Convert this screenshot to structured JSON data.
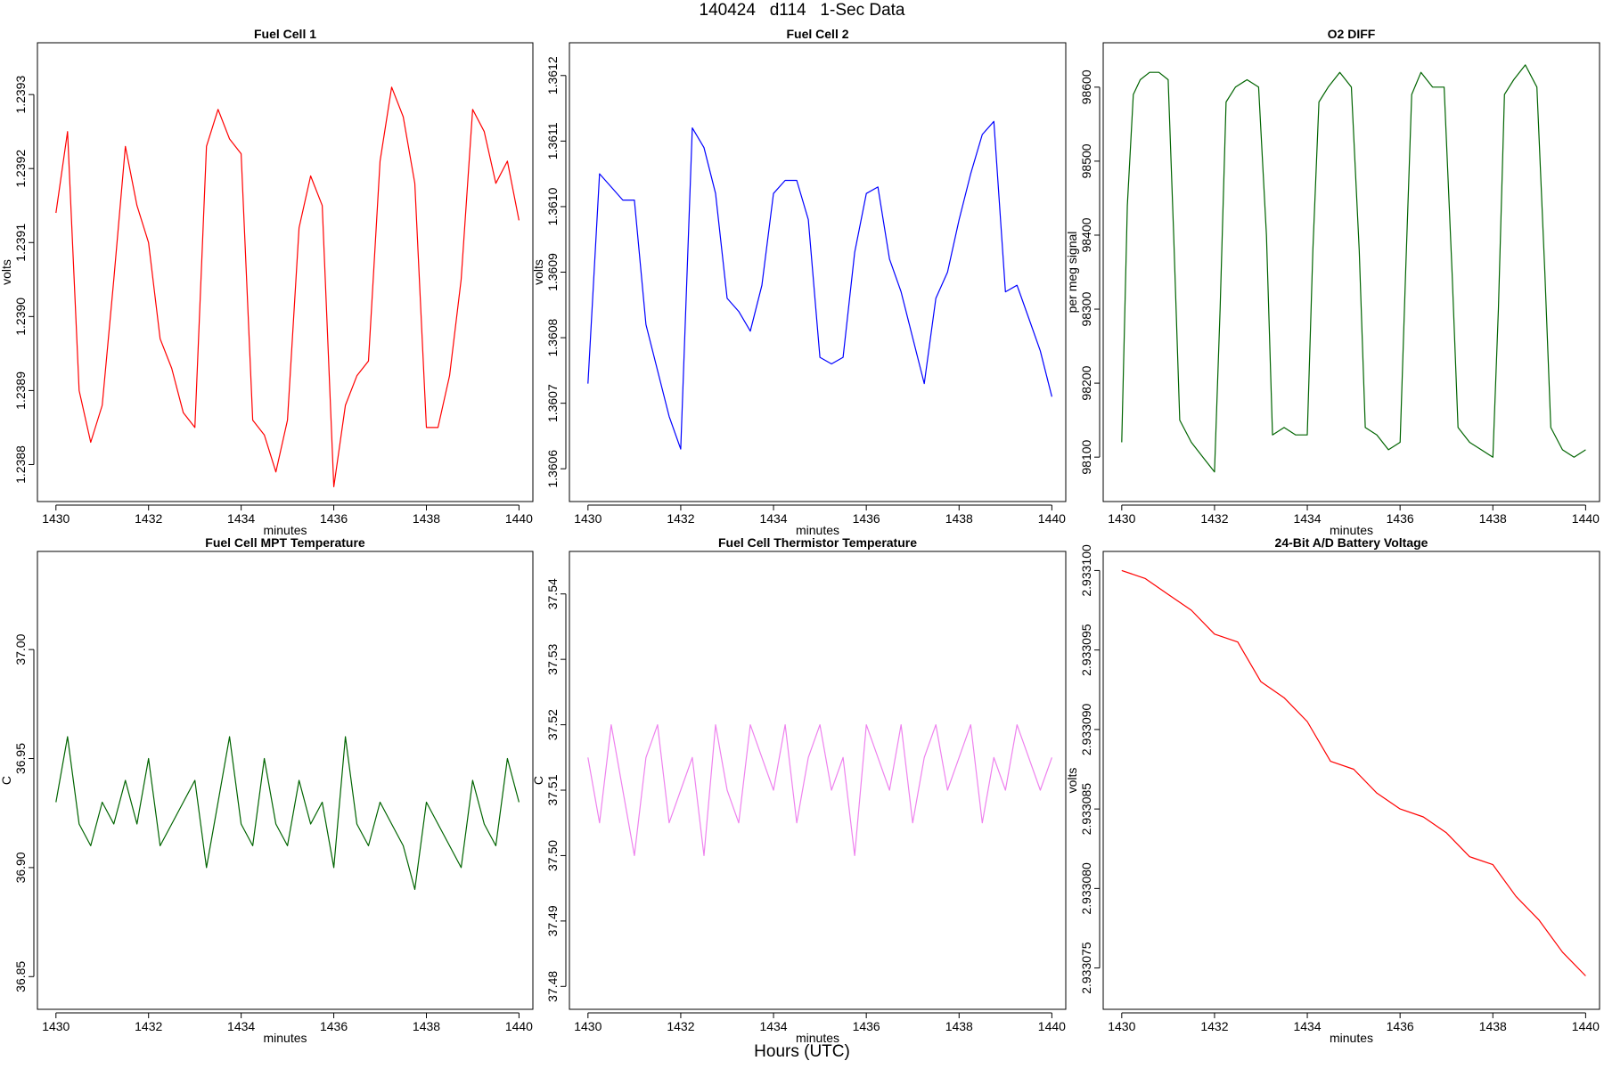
{
  "page": {
    "title": "140424   d114   1-Sec Data",
    "footer": "Hours (UTC)"
  },
  "chart_data": [
    {
      "type": "line",
      "title": "Fuel Cell 1",
      "xlabel": "minutes",
      "ylabel": "volts",
      "color": "#ff0000",
      "xlim": [
        1429.6,
        1440.3
      ],
      "ylim": [
        1.23875,
        1.23937
      ],
      "x_ticks": [
        1430,
        1432,
        1434,
        1436,
        1438,
        1440
      ],
      "y_ticks": [
        1.2388,
        1.2389,
        1.239,
        1.2391,
        1.2392,
        1.2393
      ],
      "y_tick_labels": [
        "1.2388",
        "1.2389",
        "1.2390",
        "1.2391",
        "1.2392",
        "1.2393"
      ],
      "x": [
        1430.0,
        1430.25,
        1430.5,
        1430.75,
        1431.0,
        1431.25,
        1431.5,
        1431.75,
        1432.0,
        1432.25,
        1432.5,
        1432.75,
        1433.0,
        1433.25,
        1433.5,
        1433.75,
        1434.0,
        1434.25,
        1434.5,
        1434.75,
        1435.0,
        1435.25,
        1435.5,
        1435.75,
        1436.0,
        1436.25,
        1436.5,
        1436.75,
        1437.0,
        1437.25,
        1437.5,
        1437.75,
        1438.0,
        1438.25,
        1438.5,
        1438.75,
        1439.0,
        1439.25,
        1439.5,
        1439.75,
        1440.0
      ],
      "y": [
        1.23914,
        1.23925,
        1.2389,
        1.23883,
        1.23888,
        1.23905,
        1.23923,
        1.23915,
        1.2391,
        1.23897,
        1.23893,
        1.23887,
        1.23885,
        1.23923,
        1.23928,
        1.23924,
        1.23922,
        1.23886,
        1.23884,
        1.23879,
        1.23886,
        1.23912,
        1.23919,
        1.23915,
        1.23877,
        1.23888,
        1.23892,
        1.23894,
        1.23921,
        1.23931,
        1.23927,
        1.23918,
        1.23885,
        1.23885,
        1.23892,
        1.23905,
        1.23928,
        1.23925,
        1.23918,
        1.23921,
        1.23913
      ]
    },
    {
      "type": "line",
      "title": "Fuel Cell 2",
      "xlabel": "minutes",
      "ylabel": "volts",
      "color": "#0000ff",
      "xlim": [
        1429.6,
        1440.3
      ],
      "ylim": [
        1.36055,
        1.36125
      ],
      "x_ticks": [
        1430,
        1432,
        1434,
        1436,
        1438,
        1440
      ],
      "y_ticks": [
        1.3606,
        1.3607,
        1.3608,
        1.3609,
        1.361,
        1.3611,
        1.3612
      ],
      "y_tick_labels": [
        "1.3606",
        "1.3607",
        "1.3608",
        "1.3609",
        "1.3610",
        "1.3611",
        "1.3612"
      ],
      "x": [
        1430.0,
        1430.25,
        1430.5,
        1430.75,
        1431.0,
        1431.25,
        1431.5,
        1431.75,
        1432.0,
        1432.25,
        1432.5,
        1432.75,
        1433.0,
        1433.25,
        1433.5,
        1433.75,
        1434.0,
        1434.25,
        1434.5,
        1434.75,
        1435.0,
        1435.25,
        1435.5,
        1435.75,
        1436.0,
        1436.25,
        1436.5,
        1436.75,
        1437.0,
        1437.25,
        1437.5,
        1437.75,
        1438.0,
        1438.25,
        1438.5,
        1438.75,
        1439.0,
        1439.25,
        1439.5,
        1439.75,
        1440.0
      ],
      "y": [
        1.36073,
        1.36105,
        1.36103,
        1.36101,
        1.36101,
        1.36082,
        1.36075,
        1.36068,
        1.36063,
        1.36112,
        1.36109,
        1.36102,
        1.36086,
        1.36084,
        1.36081,
        1.36088,
        1.36102,
        1.36104,
        1.36104,
        1.36098,
        1.36077,
        1.36076,
        1.36077,
        1.36093,
        1.36102,
        1.36103,
        1.36092,
        1.36087,
        1.3608,
        1.36073,
        1.36086,
        1.3609,
        1.36098,
        1.36105,
        1.36111,
        1.36113,
        1.36087,
        1.36088,
        1.36083,
        1.36078,
        1.36071
      ]
    },
    {
      "type": "line",
      "title": "O2 DIFF",
      "xlabel": "minutes",
      "ylabel": "per meg signal",
      "color": "#006400",
      "xlim": [
        1429.6,
        1440.3
      ],
      "ylim": [
        98040,
        98660
      ],
      "x_ticks": [
        1430,
        1432,
        1434,
        1436,
        1438,
        1440
      ],
      "y_ticks": [
        98100,
        98200,
        98300,
        98400,
        98500,
        98600
      ],
      "y_tick_labels": [
        "98100",
        "98200",
        "98300",
        "98400",
        "98500",
        "98600"
      ],
      "x": [
        1430.0,
        1430.12,
        1430.25,
        1430.4,
        1430.6,
        1430.8,
        1431.0,
        1431.12,
        1431.25,
        1431.5,
        1431.75,
        1432.0,
        1432.12,
        1432.25,
        1432.45,
        1432.7,
        1432.95,
        1433.12,
        1433.25,
        1433.5,
        1433.75,
        1434.0,
        1434.12,
        1434.25,
        1434.45,
        1434.7,
        1434.95,
        1435.12,
        1435.25,
        1435.5,
        1435.75,
        1436.0,
        1436.12,
        1436.25,
        1436.45,
        1436.7,
        1436.95,
        1437.12,
        1437.25,
        1437.5,
        1437.75,
        1438.0,
        1438.12,
        1438.25,
        1438.45,
        1438.7,
        1438.95,
        1439.12,
        1439.25,
        1439.5,
        1439.75,
        1440.0
      ],
      "y": [
        98120,
        98440,
        98590,
        98610,
        98620,
        98620,
        98610,
        98400,
        98150,
        98120,
        98100,
        98080,
        98300,
        98580,
        98600,
        98610,
        98600,
        98400,
        98130,
        98140,
        98130,
        98130,
        98380,
        98580,
        98600,
        98620,
        98600,
        98380,
        98140,
        98130,
        98110,
        98120,
        98350,
        98590,
        98620,
        98600,
        98600,
        98350,
        98140,
        98120,
        98110,
        98100,
        98300,
        98590,
        98610,
        98630,
        98600,
        98350,
        98140,
        98110,
        98100,
        98110
      ]
    },
    {
      "type": "line",
      "title": "Fuel Cell MPT Temperature",
      "xlabel": "minutes",
      "ylabel": "C",
      "color": "#006400",
      "xlim": [
        1429.6,
        1440.3
      ],
      "ylim": [
        36.835,
        37.045
      ],
      "x_ticks": [
        1430,
        1432,
        1434,
        1436,
        1438,
        1440
      ],
      "y_ticks": [
        36.85,
        36.9,
        36.95,
        37.0
      ],
      "y_tick_labels": [
        "36.85",
        "36.90",
        "36.95",
        "37.00"
      ],
      "x": [
        1430.0,
        1430.25,
        1430.5,
        1430.75,
        1431.0,
        1431.25,
        1431.5,
        1431.75,
        1432.0,
        1432.25,
        1432.5,
        1432.75,
        1433.0,
        1433.25,
        1433.5,
        1433.75,
        1434.0,
        1434.25,
        1434.5,
        1434.75,
        1435.0,
        1435.25,
        1435.5,
        1435.75,
        1436.0,
        1436.25,
        1436.5,
        1436.75,
        1437.0,
        1437.25,
        1437.5,
        1437.75,
        1438.0,
        1438.25,
        1438.5,
        1438.75,
        1439.0,
        1439.25,
        1439.5,
        1439.75,
        1440.0
      ],
      "y": [
        36.93,
        36.96,
        36.92,
        36.91,
        36.93,
        36.92,
        36.94,
        36.92,
        36.95,
        36.91,
        36.92,
        36.93,
        36.94,
        36.9,
        36.93,
        36.96,
        36.92,
        36.91,
        36.95,
        36.92,
        36.91,
        36.94,
        36.92,
        36.93,
        36.9,
        36.96,
        36.92,
        36.91,
        36.93,
        36.92,
        36.91,
        36.89,
        36.93,
        36.92,
        36.91,
        36.9,
        36.94,
        36.92,
        36.91,
        36.95,
        36.93
      ]
    },
    {
      "type": "line",
      "title": "Fuel Cell Thermistor Temperature",
      "xlabel": "minutes",
      "ylabel": "C",
      "color": "#ee82ee",
      "xlim": [
        1429.6,
        1440.3
      ],
      "ylim": [
        37.4765,
        37.5465
      ],
      "x_ticks": [
        1430,
        1432,
        1434,
        1436,
        1438,
        1440
      ],
      "y_ticks": [
        37.48,
        37.49,
        37.5,
        37.51,
        37.52,
        37.53,
        37.54
      ],
      "y_tick_labels": [
        "37.48",
        "37.49",
        "37.50",
        "37.51",
        "37.52",
        "37.53",
        "37.54"
      ],
      "x": [
        1430.0,
        1430.25,
        1430.5,
        1430.75,
        1431.0,
        1431.25,
        1431.5,
        1431.75,
        1432.0,
        1432.25,
        1432.5,
        1432.75,
        1433.0,
        1433.25,
        1433.5,
        1433.75,
        1434.0,
        1434.25,
        1434.5,
        1434.75,
        1435.0,
        1435.25,
        1435.5,
        1435.75,
        1436.0,
        1436.25,
        1436.5,
        1436.75,
        1437.0,
        1437.25,
        1437.5,
        1437.75,
        1438.0,
        1438.25,
        1438.5,
        1438.75,
        1439.0,
        1439.25,
        1439.5,
        1439.75,
        1440.0
      ],
      "y": [
        37.515,
        37.505,
        37.52,
        37.51,
        37.5,
        37.515,
        37.52,
        37.505,
        37.51,
        37.515,
        37.5,
        37.52,
        37.51,
        37.505,
        37.52,
        37.515,
        37.51,
        37.52,
        37.505,
        37.515,
        37.52,
        37.51,
        37.515,
        37.5,
        37.52,
        37.515,
        37.51,
        37.52,
        37.505,
        37.515,
        37.52,
        37.51,
        37.515,
        37.52,
        37.505,
        37.515,
        37.51,
        37.52,
        37.515,
        37.51,
        37.515
      ]
    },
    {
      "type": "line",
      "title": "24-Bit A/D Battery Voltage",
      "xlabel": "minutes",
      "ylabel": "volts",
      "color": "#ff0000",
      "xlim": [
        1429.6,
        1440.3
      ],
      "ylim": [
        2.9330724,
        2.9331012
      ],
      "x_ticks": [
        1430,
        1432,
        1434,
        1436,
        1438,
        1440
      ],
      "y_ticks": [
        2.933075,
        2.93308,
        2.933085,
        2.93309,
        2.933095,
        2.9331
      ],
      "y_tick_labels": [
        "2.933075",
        "2.933080",
        "2.933085",
        "2.933090",
        "2.933095",
        "2.933100"
      ],
      "x": [
        1430.0,
        1430.5,
        1431.0,
        1431.5,
        1432.0,
        1432.5,
        1433.0,
        1433.5,
        1434.0,
        1434.5,
        1435.0,
        1435.5,
        1436.0,
        1436.5,
        1437.0,
        1437.5,
        1438.0,
        1438.5,
        1439.0,
        1439.5,
        1440.0
      ],
      "y": [
        2.9331,
        2.9330995,
        2.9330985,
        2.9330975,
        2.933096,
        2.9330955,
        2.933093,
        2.933092,
        2.9330905,
        2.933088,
        2.9330875,
        2.933086,
        2.933085,
        2.9330845,
        2.9330835,
        2.933082,
        2.9330815,
        2.9330795,
        2.933078,
        2.933076,
        2.9330745
      ]
    }
  ]
}
